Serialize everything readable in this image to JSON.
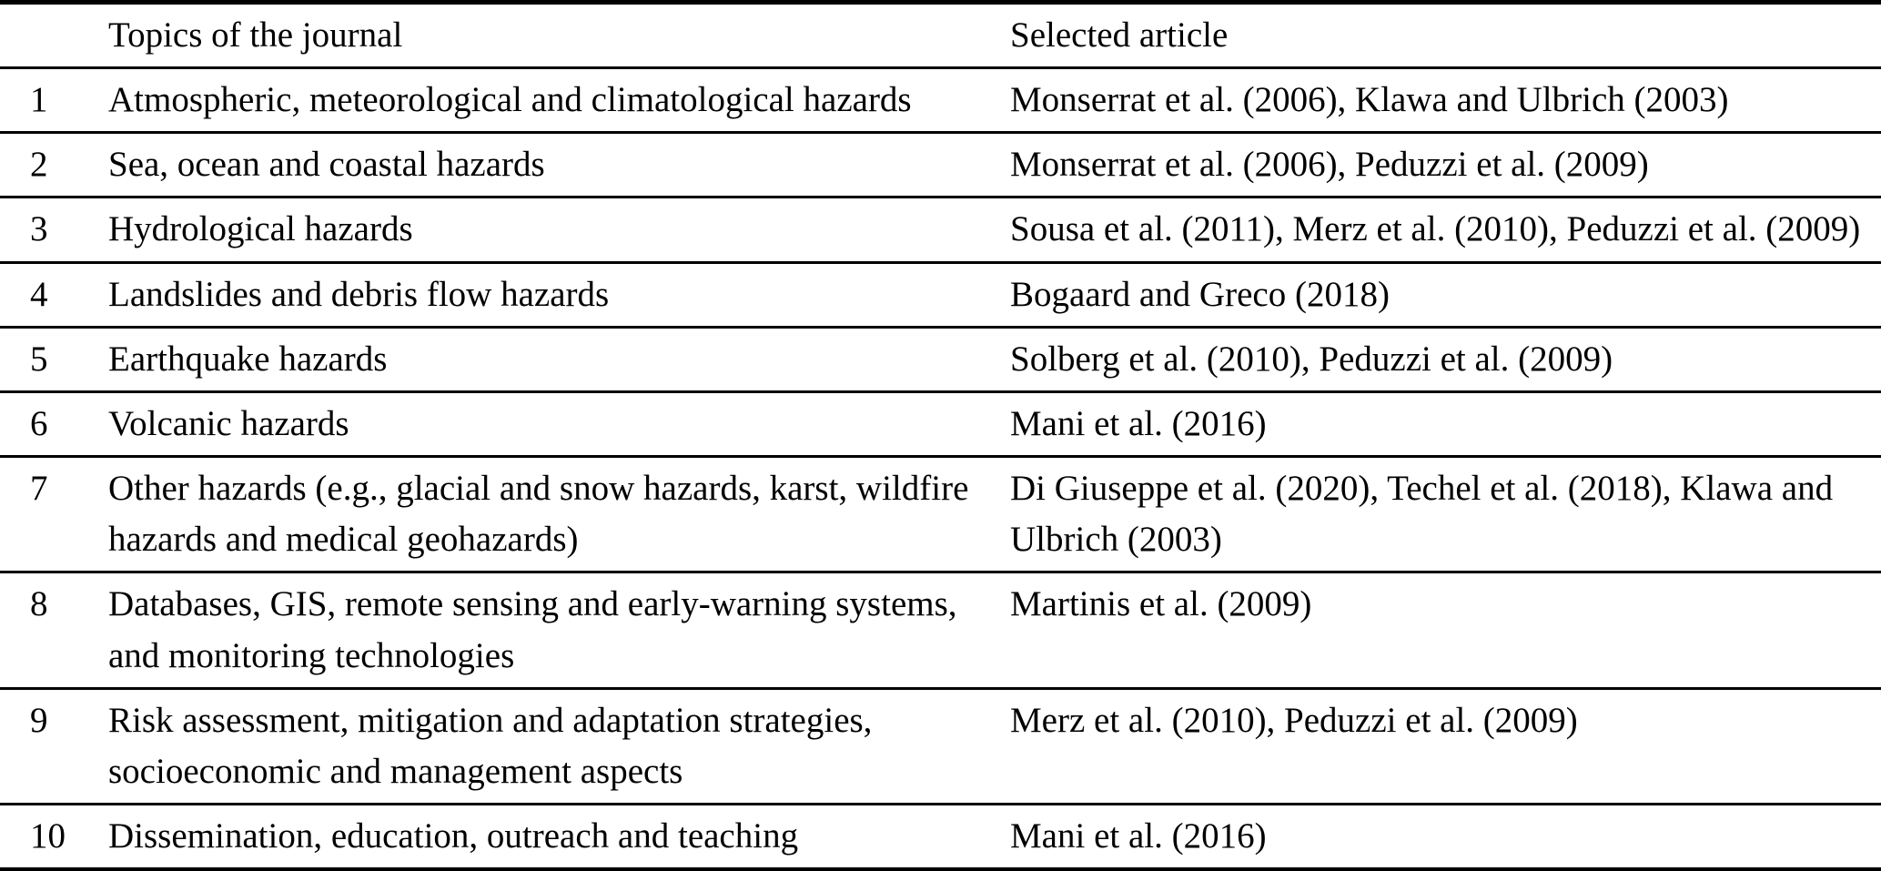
{
  "table": {
    "header": {
      "num": "",
      "topic": "Topics of the journal",
      "article": "Selected article"
    },
    "rows": [
      {
        "num": "1",
        "topic": "Atmospheric, meteorological and climatological hazards",
        "article": "Monserrat et al. (2006), Klawa and Ulbrich (2003)"
      },
      {
        "num": "2",
        "topic": "Sea, ocean and coastal hazards",
        "article": "Monserrat et al. (2006), Peduzzi et al. (2009)"
      },
      {
        "num": "3",
        "topic": "Hydrological hazards",
        "article": "Sousa et al. (2011), Merz et al. (2010), Peduzzi et al. (2009)"
      },
      {
        "num": "4",
        "topic": "Landslides and debris flow hazards",
        "article": "Bogaard and Greco (2018)"
      },
      {
        "num": "5",
        "topic": "Earthquake hazards",
        "article": "Solberg et al. (2010), Peduzzi et al. (2009)"
      },
      {
        "num": "6",
        "topic": "Volcanic hazards",
        "article": "Mani et al. (2016)"
      },
      {
        "num": "7",
        "topic": "Other hazards (e.g., glacial and snow hazards, karst, wildfire hazards and medical geohazards)",
        "article": "Di Giuseppe et al. (2020), Techel et al. (2018), Klawa and Ulbrich (2003)"
      },
      {
        "num": "8",
        "topic": "Databases, GIS, remote sensing and early-warning systems, and monitoring technologies",
        "article": "Martinis et al. (2009)"
      },
      {
        "num": "9",
        "topic": "Risk assessment, mitigation and adaptation strategies, socioeconomic and management aspects",
        "article": "Merz et al. (2010), Peduzzi et al. (2009)"
      },
      {
        "num": "10",
        "topic": "Dissemination, education, outreach and teaching",
        "article": "Mani et al. (2016)"
      }
    ]
  }
}
